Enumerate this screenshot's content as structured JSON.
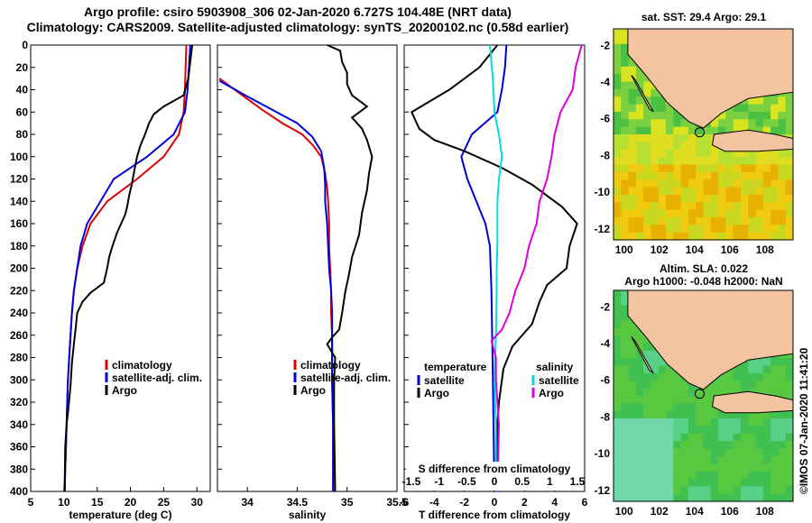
{
  "title_line1": "Argo profile: csiro 5903908_306 02-Jan-2020 6.727S 104.48E (NRT data)",
  "title_line2": "Climatology: CARS2009. Satellite-adjusted climatology: synTS_20200102.nc (0.58d earlier)",
  "colors": {
    "climatology": "#dd0000",
    "satellite": "#0000dd",
    "argo": "#000000",
    "s_satellite": "#00dddd",
    "s_argo": "#dd00dd"
  },
  "depth_ticks": [
    "0",
    "20",
    "40",
    "60",
    "80",
    "100",
    "120",
    "140",
    "160",
    "180",
    "200",
    "220",
    "240",
    "260",
    "280",
    "300",
    "320",
    "340",
    "360",
    "380",
    "400"
  ],
  "chart_data": [
    {
      "type": "line",
      "title": "",
      "xlabel": "temperature (deg C)",
      "ylabel": "depth",
      "xlim": [
        5,
        32
      ],
      "ylim": [
        400,
        0
      ],
      "xticks": [
        "5",
        "10",
        "15",
        "20",
        "25",
        "30"
      ],
      "legend": [
        "climatology",
        "satellite-adj. clim.",
        "Argo"
      ],
      "series": [
        {
          "name": "climatology",
          "color": "#dd0000",
          "points": [
            [
              28.4,
              0
            ],
            [
              28.3,
              20
            ],
            [
              28.2,
              40
            ],
            [
              28.0,
              60
            ],
            [
              27.3,
              80
            ],
            [
              25.0,
              100
            ],
            [
              21.0,
              120
            ],
            [
              16.5,
              140
            ],
            [
              14.0,
              160
            ],
            [
              12.8,
              180
            ],
            [
              12.0,
              200
            ],
            [
              11.5,
              220
            ],
            [
              11.2,
              240
            ],
            [
              11.0,
              260
            ],
            [
              10.8,
              280
            ],
            [
              10.6,
              300
            ],
            [
              10.5,
              320
            ],
            [
              10.4,
              340
            ],
            [
              10.3,
              360
            ],
            [
              10.2,
              380
            ],
            [
              10.1,
              400
            ]
          ]
        },
        {
          "name": "satellite-adj. clim.",
          "color": "#0000dd",
          "points": [
            [
              29.0,
              0
            ],
            [
              28.8,
              20
            ],
            [
              28.6,
              40
            ],
            [
              28.2,
              60
            ],
            [
              26.5,
              80
            ],
            [
              22.5,
              100
            ],
            [
              17.5,
              120
            ],
            [
              15.5,
              140
            ],
            [
              13.5,
              160
            ],
            [
              12.5,
              180
            ],
            [
              12.0,
              200
            ],
            [
              11.5,
              220
            ],
            [
              11.2,
              240
            ],
            [
              11.0,
              260
            ],
            [
              10.8,
              280
            ],
            [
              10.6,
              300
            ],
            [
              10.5,
              320
            ],
            [
              10.4,
              340
            ],
            [
              10.3,
              360
            ],
            [
              10.2,
              380
            ],
            [
              10.1,
              400
            ]
          ]
        },
        {
          "name": "Argo",
          "color": "#000000",
          "points": [
            [
              29.3,
              0
            ],
            [
              29.1,
              10
            ],
            [
              28.7,
              30
            ],
            [
              28.0,
              45
            ],
            [
              25.0,
              55
            ],
            [
              23.5,
              62
            ],
            [
              22.8,
              70
            ],
            [
              22.2,
              80
            ],
            [
              21.5,
              90
            ],
            [
              21.0,
              100
            ],
            [
              20.6,
              112
            ],
            [
              20.2,
              125
            ],
            [
              19.8,
              135
            ],
            [
              19.5,
              145
            ],
            [
              19.2,
              152
            ],
            [
              18.0,
              168
            ],
            [
              17.3,
              180
            ],
            [
              16.8,
              190
            ],
            [
              16.5,
              200
            ],
            [
              16.0,
              213
            ],
            [
              14.0,
              222
            ],
            [
              12.8,
              230
            ],
            [
              12.0,
              240
            ],
            [
              11.8,
              252
            ],
            [
              11.5,
              268
            ],
            [
              11.2,
              285
            ],
            [
              11.0,
              305
            ],
            [
              10.6,
              330
            ],
            [
              10.4,
              340
            ],
            [
              10.2,
              360
            ],
            [
              10.1,
              400
            ]
          ]
        }
      ]
    },
    {
      "type": "line",
      "title": "",
      "xlabel": "salinity",
      "xlim": [
        33.7,
        35.5
      ],
      "ylim": [
        400,
        0
      ],
      "xticks": [
        "34",
        "34.5",
        "35",
        "35.5"
      ],
      "legend": [
        "climatology",
        "satellite-adj. clim.",
        "Argo"
      ],
      "series": [
        {
          "name": "climatology",
          "color": "#dd0000",
          "points": [
            [
              33.72,
              30
            ],
            [
              33.95,
              45
            ],
            [
              34.15,
              58
            ],
            [
              34.35,
              70
            ],
            [
              34.55,
              80
            ],
            [
              34.66,
              90
            ],
            [
              34.74,
              100
            ],
            [
              34.78,
              115
            ],
            [
              34.8,
              128
            ],
            [
              34.81,
              140
            ],
            [
              34.82,
              160
            ],
            [
              34.82,
              180
            ],
            [
              34.83,
              200
            ],
            [
              34.84,
              220
            ],
            [
              34.84,
              240
            ],
            [
              34.85,
              260
            ],
            [
              34.85,
              300
            ],
            [
              34.86,
              340
            ],
            [
              34.86,
              400
            ]
          ]
        },
        {
          "name": "satellite-adj. clim.",
          "color": "#0000dd",
          "points": [
            [
              33.72,
              32
            ],
            [
              33.98,
              45
            ],
            [
              34.25,
              58
            ],
            [
              34.5,
              70
            ],
            [
              34.65,
              82
            ],
            [
              34.74,
              95
            ],
            [
              34.77,
              110
            ],
            [
              34.78,
              125
            ],
            [
              34.78,
              140
            ],
            [
              34.8,
              160
            ],
            [
              34.81,
              180
            ],
            [
              34.82,
              200
            ],
            [
              34.84,
              220
            ],
            [
              34.85,
              240
            ],
            [
              34.85,
              260
            ],
            [
              34.85,
              300
            ],
            [
              34.86,
              340
            ],
            [
              34.86,
              400
            ]
          ]
        },
        {
          "name": "Argo",
          "color": "#000000",
          "points": [
            [
              34.8,
              0
            ],
            [
              34.93,
              5
            ],
            [
              34.95,
              15
            ],
            [
              35.0,
              25
            ],
            [
              35.0,
              35
            ],
            [
              35.05,
              45
            ],
            [
              35.2,
              55
            ],
            [
              35.05,
              65
            ],
            [
              35.15,
              75
            ],
            [
              35.2,
              85
            ],
            [
              35.25,
              100
            ],
            [
              35.22,
              115
            ],
            [
              35.2,
              130
            ],
            [
              35.15,
              150
            ],
            [
              35.12,
              170
            ],
            [
              35.05,
              190
            ],
            [
              35.02,
              205
            ],
            [
              34.98,
              222
            ],
            [
              34.95,
              240
            ],
            [
              34.92,
              255
            ],
            [
              34.85,
              262
            ],
            [
              34.8,
              268
            ],
            [
              34.88,
              280
            ],
            [
              34.87,
              300
            ],
            [
              34.87,
              340
            ],
            [
              34.88,
              400
            ]
          ]
        }
      ]
    },
    {
      "type": "line",
      "title": "",
      "xlabel": "T difference from climatology",
      "xlabel_top": "S difference from climatology",
      "xlim": [
        -6,
        6
      ],
      "ylim": [
        400,
        0
      ],
      "xticks": [
        "-6",
        "-4",
        "-2",
        "0",
        "2",
        "4",
        "6"
      ],
      "xticks_top": [
        "-1.5",
        "-1",
        "-0.5",
        "0",
        "0.5",
        "1",
        "1.5"
      ],
      "legend_left_title": "temperature",
      "legend_right_title": "salinity",
      "legend_left": [
        "satellite",
        "Argo"
      ],
      "legend_right": [
        "satellite",
        "Argo"
      ],
      "series": [
        {
          "name": "T satellite",
          "color": "#0000dd",
          "points": [
            [
              0.8,
              0
            ],
            [
              0.7,
              20
            ],
            [
              0.5,
              40
            ],
            [
              0.2,
              60
            ],
            [
              -1.5,
              80
            ],
            [
              -2.2,
              100
            ],
            [
              -1.8,
              120
            ],
            [
              -1.2,
              140
            ],
            [
              -0.6,
              160
            ],
            [
              -0.3,
              180
            ],
            [
              -0.2,
              220
            ],
            [
              -0.1,
              300
            ],
            [
              0,
              400
            ]
          ]
        },
        {
          "name": "T Argo",
          "color": "#000000",
          "points": [
            [
              0.2,
              0
            ],
            [
              -1.0,
              20
            ],
            [
              -3.0,
              40
            ],
            [
              -5.5,
              60
            ],
            [
              -5.0,
              75
            ],
            [
              -4.0,
              85
            ],
            [
              -2.0,
              95
            ],
            [
              0.5,
              110
            ],
            [
              2.5,
              125
            ],
            [
              4.5,
              145
            ],
            [
              5.5,
              160
            ],
            [
              5.0,
              180
            ],
            [
              4.8,
              200
            ],
            [
              3.5,
              215
            ],
            [
              3.0,
              230
            ],
            [
              2.5,
              250
            ],
            [
              1.2,
              270
            ],
            [
              0.6,
              290
            ],
            [
              0.3,
              320
            ],
            [
              0.2,
              340
            ],
            [
              0.1,
              400
            ]
          ]
        },
        {
          "name": "S satellite",
          "color": "#00dddd",
          "points": [
            [
              -0.3,
              0
            ],
            [
              -0.1,
              30
            ],
            [
              0,
              60
            ],
            [
              0.3,
              80
            ],
            [
              0.5,
              100
            ],
            [
              0.3,
              120
            ],
            [
              0.2,
              140
            ],
            [
              0.2,
              180
            ],
            [
              0.15,
              200
            ],
            [
              0.15,
              220
            ],
            [
              0.1,
              260
            ],
            [
              0,
              300
            ],
            [
              0.1,
              340
            ],
            [
              0.1,
              400
            ]
          ]
        },
        {
          "name": "S Argo",
          "color": "#dd00dd",
          "points": [
            [
              5.8,
              0
            ],
            [
              5.4,
              20
            ],
            [
              5.2,
              40
            ],
            [
              4.4,
              60
            ],
            [
              4.0,
              80
            ],
            [
              3.8,
              100
            ],
            [
              3.5,
              120
            ],
            [
              3.0,
              140
            ],
            [
              2.8,
              160
            ],
            [
              2.3,
              180
            ],
            [
              2.0,
              200
            ],
            [
              1.4,
              220
            ],
            [
              1.0,
              240
            ],
            [
              0.5,
              255
            ],
            [
              -0.2,
              265
            ],
            [
              0.1,
              280
            ],
            [
              0.1,
              300
            ],
            [
              0.3,
              340
            ],
            [
              0.2,
              400
            ]
          ]
        }
      ]
    }
  ],
  "map_top": {
    "title": "sat. SST: 29.4 Argo: 29.1",
    "xticks": [
      "100",
      "102",
      "104",
      "106",
      "108"
    ],
    "yticks": [
      "-2",
      "-4",
      "-6",
      "-8",
      "-10",
      "-12"
    ]
  },
  "map_bottom": {
    "title_line1": "Altim. SLA: 0.022",
    "title_line2": "Argo h1000: -0.048 h2000: NaN",
    "xticks": [
      "100",
      "102",
      "104",
      "106",
      "108"
    ],
    "yticks": [
      "-2",
      "-4",
      "-6",
      "-8",
      "-10",
      "-12"
    ]
  },
  "credit": "©IMOS 07-Jan-2020 11:41:20"
}
